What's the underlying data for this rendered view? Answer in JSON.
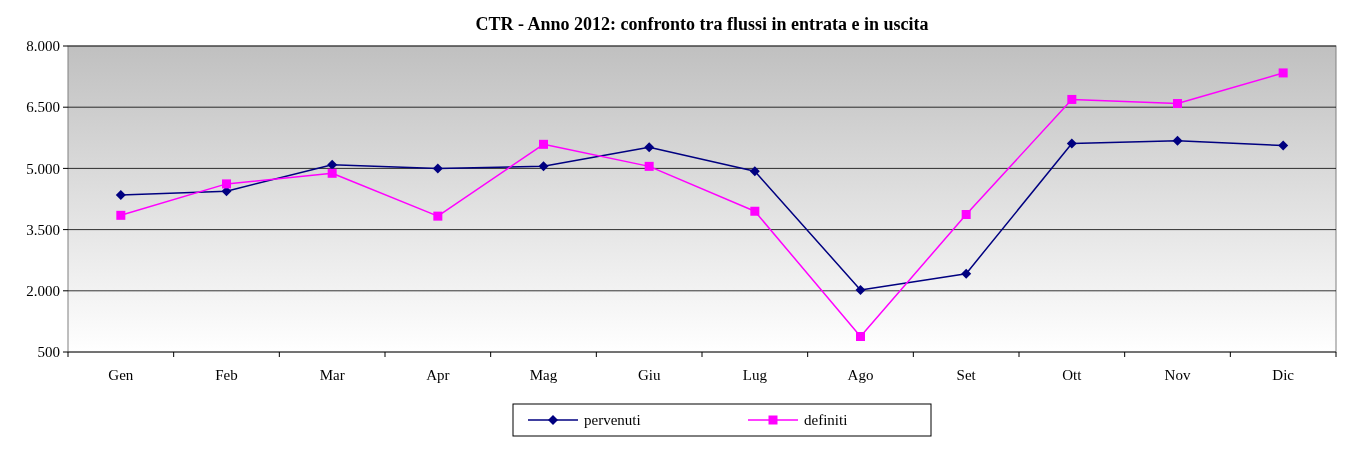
{
  "chart_data": {
    "type": "line",
    "title": "CTR - Anno 2012: confronto tra flussi in entrata e in uscita",
    "categories": [
      "Gen",
      "Feb",
      "Mar",
      "Apr",
      "Mag",
      "Giu",
      "Lug",
      "Ago",
      "Set",
      "Ott",
      "Nov",
      "Dic"
    ],
    "series": [
      {
        "name": "pervenuti",
        "color": "#000080",
        "marker": "diamond",
        "values": [
          4350,
          4440,
          5090,
          5000,
          5050,
          5520,
          4930,
          2020,
          2420,
          5610,
          5680,
          5560
        ]
      },
      {
        "name": "definiti",
        "color": "#ff00ff",
        "marker": "square",
        "values": [
          3850,
          4620,
          4880,
          3830,
          5590,
          5050,
          3950,
          880,
          3870,
          6690,
          6590,
          7340
        ]
      }
    ],
    "ylim": [
      500,
      8000
    ],
    "yticks": [
      {
        "value": 500,
        "label": "500"
      },
      {
        "value": 2000,
        "label": "2.000"
      },
      {
        "value": 3500,
        "label": "3.500"
      },
      {
        "value": 5000,
        "label": "5.000"
      },
      {
        "value": 6500,
        "label": "6.500"
      },
      {
        "value": 8000,
        "label": "8.000"
      }
    ],
    "grid": "y",
    "legend": "bottom"
  }
}
